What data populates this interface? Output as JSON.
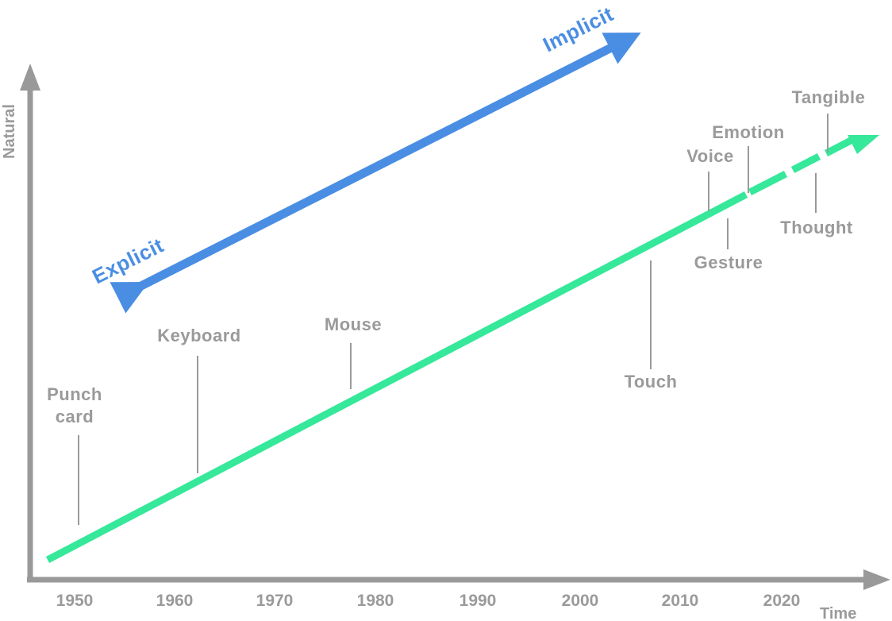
{
  "axes": {
    "y_title": "Natural",
    "x_title": "Time",
    "x_ticks": [
      "1950",
      "1960",
      "1970",
      "1980",
      "1990",
      "2000",
      "2010",
      "2020"
    ]
  },
  "trend": {
    "explicit_label": "Explicit",
    "implicit_label": "Implicit"
  },
  "milestones": [
    {
      "id": "punch-card",
      "line1": "Punch",
      "line2": "card"
    },
    {
      "id": "keyboard",
      "line1": "Keyboard"
    },
    {
      "id": "mouse",
      "line1": "Mouse"
    },
    {
      "id": "touch",
      "line1": "Touch"
    },
    {
      "id": "voice",
      "line1": "Voice"
    },
    {
      "id": "gesture",
      "line1": "Gesture"
    },
    {
      "id": "emotion",
      "line1": "Emotion"
    },
    {
      "id": "thought",
      "line1": "Thought"
    },
    {
      "id": "tangible",
      "line1": "Tangible"
    }
  ],
  "colors": {
    "axis": "#999999",
    "green_line": "#35e89a",
    "blue_arrow": "#4a8ee3",
    "label_gray": "#9a9a9a"
  }
}
